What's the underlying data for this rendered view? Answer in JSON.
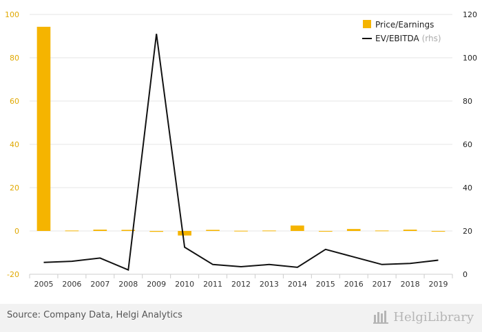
{
  "chart_data": {
    "type": "bar+line",
    "categories": [
      "2005",
      "2006",
      "2007",
      "2008",
      "2009",
      "2010",
      "2011",
      "2012",
      "2013",
      "2014",
      "2015",
      "2016",
      "2017",
      "2018",
      "2019"
    ],
    "series": [
      {
        "name": "Price/Earnings",
        "kind": "bar",
        "axis": "left",
        "color": "#f5b400",
        "values": [
          94.3,
          0.2,
          0.6,
          0.5,
          -0.4,
          -2.1,
          0.5,
          0.1,
          0.2,
          2.5,
          -0.3,
          0.9,
          0.2,
          0.6,
          -0.3
        ]
      },
      {
        "name": "EV/EBITDA",
        "kind": "line",
        "axis": "right",
        "color": "#111111",
        "values": [
          5.5,
          6.0,
          7.5,
          2.0,
          111.0,
          12.5,
          4.5,
          3.5,
          4.5,
          3.2,
          11.5,
          8.0,
          4.5,
          5.0,
          6.5
        ]
      }
    ],
    "y_left": {
      "min": -20,
      "max": 100,
      "ticks": [
        -20,
        0,
        20,
        40,
        60,
        80,
        100
      ]
    },
    "y_right": {
      "min": 0,
      "max": 120,
      "ticks": [
        0,
        20,
        40,
        60,
        80,
        100,
        120
      ]
    },
    "legend": {
      "position": "top-right",
      "items": [
        {
          "label": "Price/Earnings",
          "suffix": ""
        },
        {
          "label": "EV/EBITDA",
          "suffix": "(rhs)"
        }
      ]
    },
    "grid": true
  },
  "colors": {
    "left_axis_ticks": "#e0a800",
    "gridline": "#e6e6e6",
    "footer_bg": "#f2f2f2"
  },
  "footer": {
    "source": "Source: Company Data, Helgi Analytics",
    "logo_text": "HelgiLibrary"
  }
}
